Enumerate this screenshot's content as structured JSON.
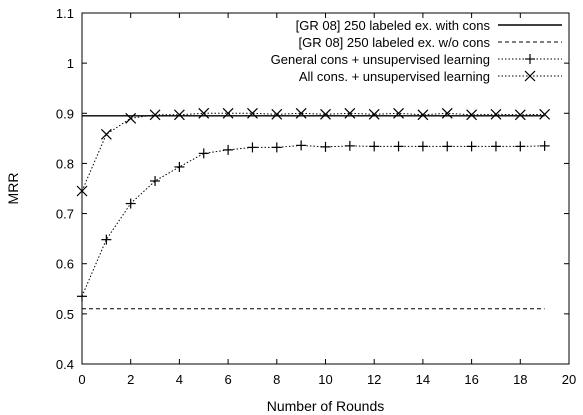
{
  "chart_data": {
    "type": "line",
    "title": "",
    "xlabel": "Number of Rounds",
    "ylabel": "MRR",
    "xlim": [
      0,
      20
    ],
    "ylim": [
      0.4,
      1.1
    ],
    "xticks": [
      0,
      2,
      4,
      6,
      8,
      10,
      12,
      14,
      16,
      18,
      20
    ],
    "yticks": [
      0.4,
      0.5,
      0.6,
      0.7,
      0.8,
      0.9,
      1.0,
      1.1
    ],
    "xtick_labels": [
      "0",
      "2",
      "4",
      "6",
      "8",
      "10",
      "12",
      "14",
      "16",
      "18",
      "20"
    ],
    "ytick_labels": [
      "0.4",
      "0.5",
      "0.6",
      "0.7",
      "0.8",
      "0.9",
      "1",
      "1.1"
    ],
    "grid": false,
    "legend_position": "top-right",
    "series": [
      {
        "name": "[GR 08] 250 labeled ex. with cons",
        "style": "solid",
        "marker": "none",
        "x": [
          0,
          19
        ],
        "values": [
          0.895,
          0.895
        ]
      },
      {
        "name": "[GR 08] 250 labeled ex. w/o cons",
        "style": "dashed",
        "marker": "none",
        "x": [
          0,
          19
        ],
        "values": [
          0.51,
          0.51
        ]
      },
      {
        "name": "General cons + unsupervised learning",
        "style": "dotted",
        "marker": "plus",
        "x": [
          0,
          1,
          2,
          3,
          4,
          5,
          6,
          7,
          8,
          9,
          10,
          11,
          12,
          13,
          14,
          15,
          16,
          17,
          18,
          19
        ],
        "values": [
          0.535,
          0.648,
          0.72,
          0.765,
          0.793,
          0.82,
          0.827,
          0.832,
          0.832,
          0.836,
          0.833,
          0.835,
          0.834,
          0.834,
          0.834,
          0.834,
          0.834,
          0.834,
          0.834,
          0.835
        ]
      },
      {
        "name": "All cons. + unsupervised learning",
        "style": "dotted",
        "marker": "x",
        "x": [
          0,
          1,
          2,
          3,
          4,
          5,
          6,
          7,
          8,
          9,
          10,
          11,
          12,
          13,
          14,
          15,
          16,
          17,
          18,
          19
        ],
        "values": [
          0.745,
          0.858,
          0.89,
          0.897,
          0.897,
          0.9,
          0.9,
          0.9,
          0.898,
          0.9,
          0.898,
          0.9,
          0.898,
          0.9,
          0.897,
          0.9,
          0.897,
          0.898,
          0.897,
          0.898
        ]
      }
    ]
  }
}
